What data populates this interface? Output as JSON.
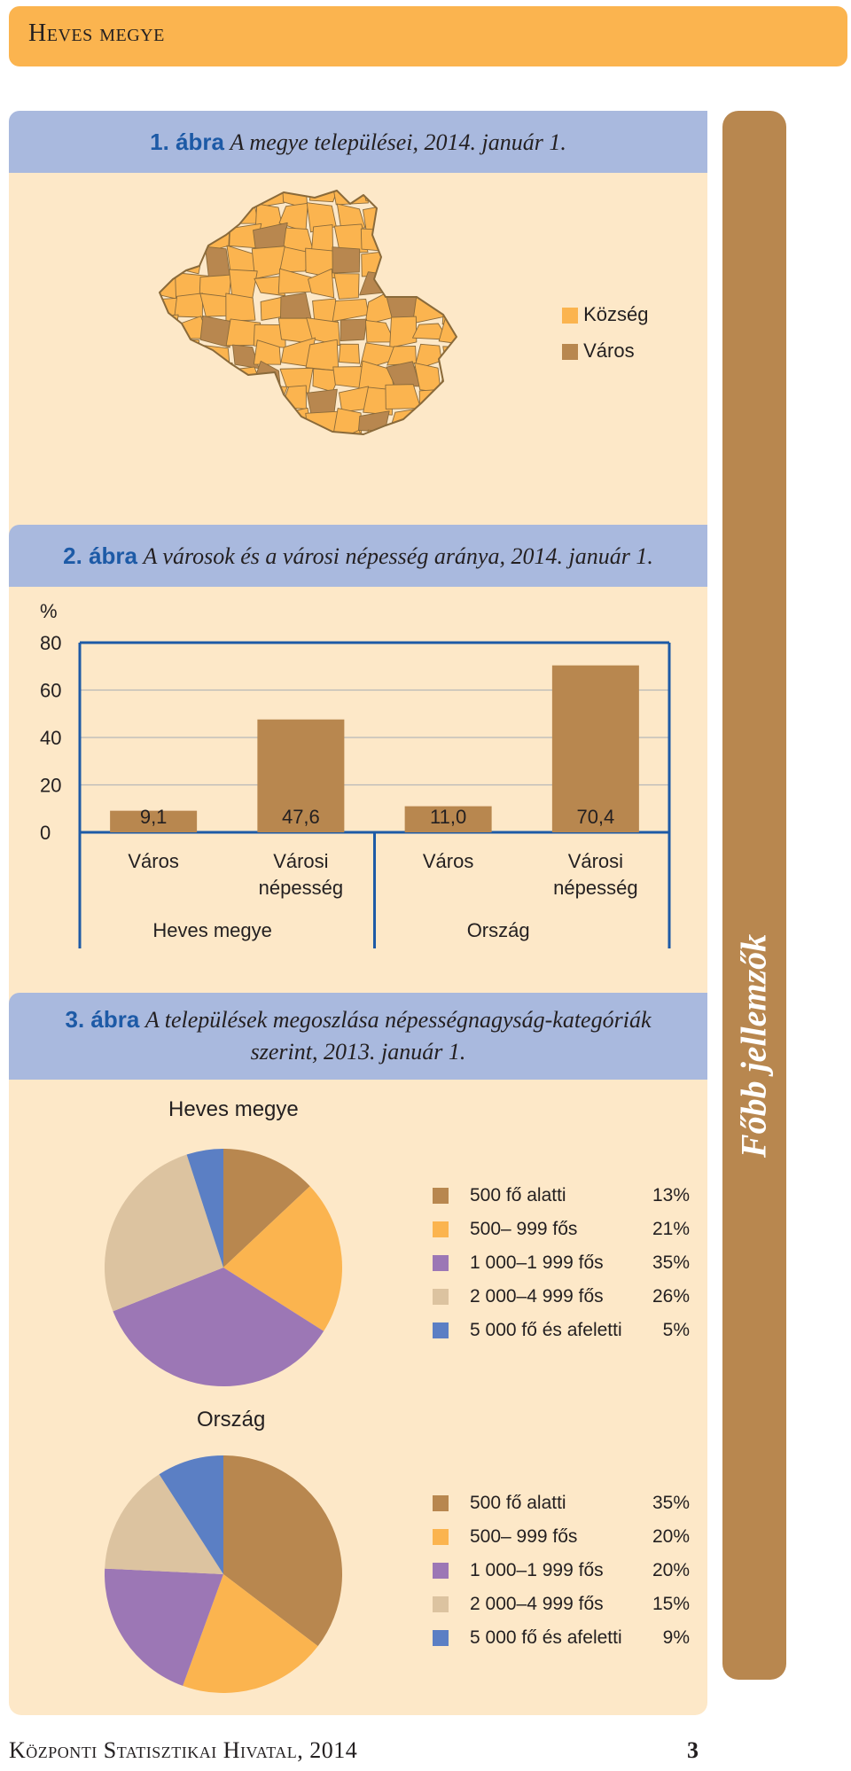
{
  "header": {
    "title": "Heves megye"
  },
  "side_tab": {
    "label": "Főbb jellemzők"
  },
  "footer": {
    "publisher": "Központi Statisztikai Hivatal, 2014",
    "page": "3"
  },
  "fig1": {
    "number": "1. ábra",
    "title": "A megye települései, 2014. január 1.",
    "legend": [
      {
        "label": "Község",
        "color": "#fbb44f"
      },
      {
        "label": "Város",
        "color": "#b8874f"
      }
    ],
    "map": {
      "palette": {
        "kozseg": "#fbb44f",
        "varos": "#b8874f",
        "border": "#8a6a3a"
      }
    }
  },
  "fig2": {
    "number": "2. ábra",
    "title": "A városok és a városi népesség aránya, 2014. január 1."
  },
  "fig3": {
    "number": "3. ábra",
    "title_line1": "A települések megoszlása népességnagyság-kategóriák",
    "title_line2": "szerint, 2013. január 1.",
    "pies": [
      {
        "title": "Heves megye"
      },
      {
        "title": "Ország"
      }
    ]
  },
  "chart_data": [
    {
      "type": "bar",
      "ylabel": "%",
      "ylim": [
        0,
        80
      ],
      "yticks": [
        0,
        20,
        40,
        60,
        80
      ],
      "grid": true,
      "groups": [
        {
          "name": "Heves megye",
          "categories": [
            "Város",
            "Városi népesség"
          ],
          "values": [
            9.1,
            47.6
          ],
          "value_labels": [
            "9,1",
            "47,6"
          ]
        },
        {
          "name": "Ország",
          "categories": [
            "Város",
            "Városi népesség"
          ],
          "values": [
            11.0,
            70.4
          ],
          "value_labels": [
            "11,0",
            "70,4"
          ]
        }
      ],
      "color": "#b8874f"
    },
    {
      "type": "pie",
      "title": "Heves megye",
      "categories": [
        "500 fő alatti",
        "500– 999 fős",
        "1 000–1 999 fős",
        "2 000–4 999 fős",
        "5 000 fő és afeletti"
      ],
      "values": [
        13,
        21,
        35,
        26,
        5
      ],
      "value_labels": [
        "13%",
        "21%",
        "35%",
        "26%",
        "5%"
      ],
      "colors": [
        "#b8874f",
        "#fbb44f",
        "#9c77b5",
        "#dcc3a0",
        "#5b7fc4"
      ]
    },
    {
      "type": "pie",
      "title": "Ország",
      "categories": [
        "500 fő alatti",
        "500– 999 fős",
        "1 000–1 999 fős",
        "2 000–4 999 fős",
        "5 000 fő és afeletti"
      ],
      "values": [
        35,
        20,
        20,
        15,
        9
      ],
      "value_labels": [
        "35%",
        "20%",
        "20%",
        "15%",
        "9%"
      ],
      "colors": [
        "#b8874f",
        "#fbb44f",
        "#9c77b5",
        "#dcc3a0",
        "#5b7fc4"
      ]
    }
  ]
}
